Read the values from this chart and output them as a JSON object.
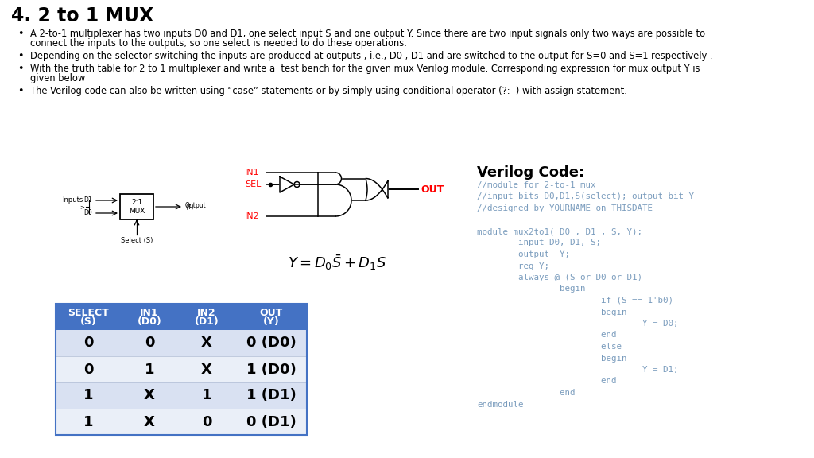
{
  "title": "4. 2 to 1 MUX",
  "b1_l1": "A 2-to-1 multiplexer has two inputs D0 and D1, one select input S and one output Y. Since there are two input signals only two ways are possible to",
  "b1_l2": "connect the inputs to the outputs, so one select is needed to do these operations.",
  "b2": "Depending on the selector switching the inputs are produced at outputs , i.e., D0 , D1 and are switched to the output for S=0 and S=1 respectively .",
  "b3_l1": "With the truth table for 2 to 1 multiplexer and write a  test bench for the given mux Verilog module. Corresponding expression for mux output Y is",
  "b3_l2": "given below",
  "b4": "The Verilog code can also be written using “case” statements or by simply using conditional operator (?:  ) with assign statement.",
  "bg_color": "#ffffff",
  "text_color": "#000000",
  "red_color": "#ff0000",
  "table_header_bg": "#4472c4",
  "table_row1_bg": "#d9e1f2",
  "table_row2_bg": "#eaeff8",
  "table_cols": [
    "SELECT\n(S)",
    "IN1\n(D0)",
    "IN2\n(D1)",
    "OUT\n(Y)"
  ],
  "table_data": [
    [
      "0",
      "0",
      "X",
      "0 (D0)"
    ],
    [
      "0",
      "1",
      "X",
      "1 (D0)"
    ],
    [
      "1",
      "X",
      "1",
      "1 (D1)"
    ],
    [
      "1",
      "X",
      "0",
      "0 (D1)"
    ]
  ],
  "verilog_title": "Verilog Code:",
  "verilog_code": [
    "//module for 2-to-1 mux",
    "//input bits D0,D1,S(select); output bit Y",
    "//designed by YOURNAME on THISDATE",
    "",
    "module mux2to1( D0 , D1 , S, Y);",
    "        input D0, D1, S;",
    "        output  Y;",
    "        reg Y;",
    "        always @ (S or D0 or D1)",
    "                begin",
    "                        if (S == 1'b0)",
    "                        begin",
    "                                Y = D0;",
    "                        end",
    "                        else",
    "                        begin",
    "                                Y = D1;",
    "                        end",
    "                end",
    "endmodule"
  ]
}
